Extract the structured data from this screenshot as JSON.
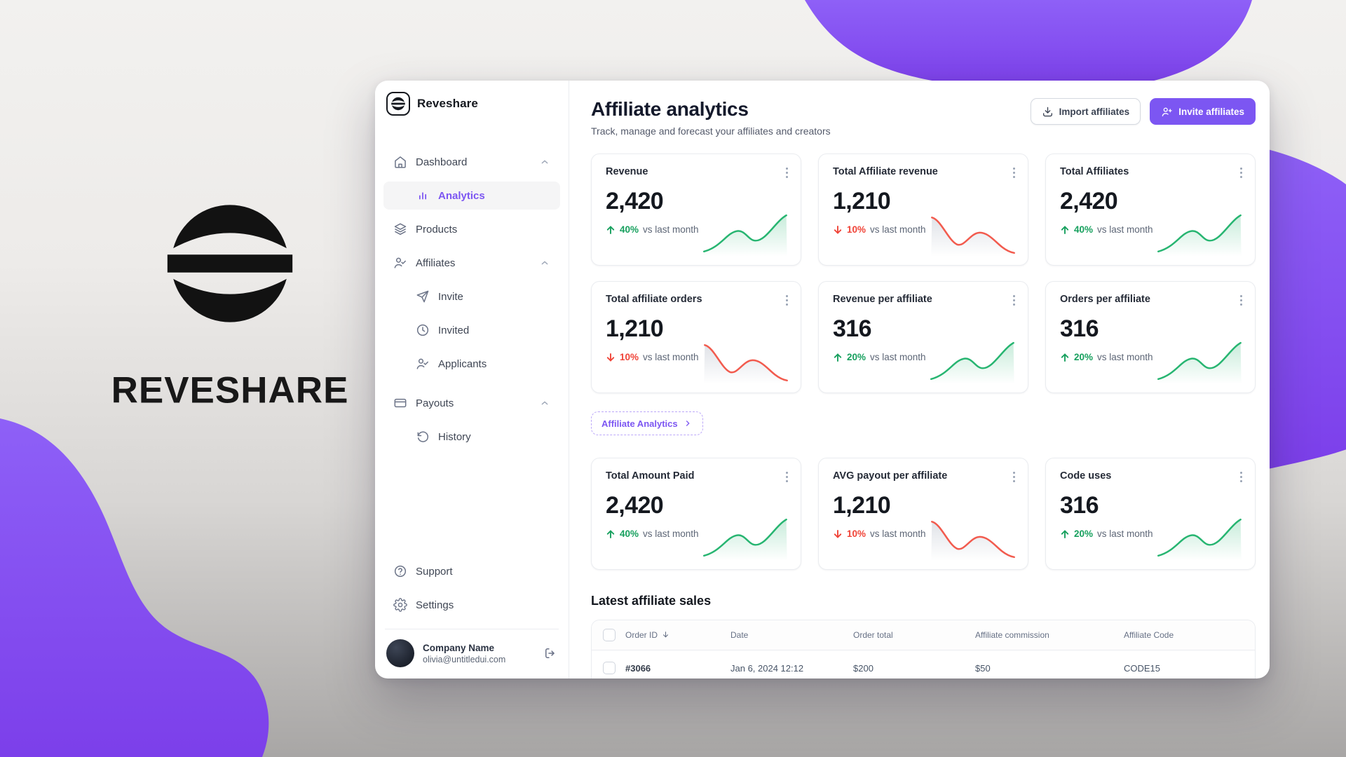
{
  "brand": {
    "wordmark": "REVESHARE",
    "logo_text": "Reveshare"
  },
  "colors": {
    "accent_purple": "#7C56F2",
    "blob_purple_top": "#8E60F7",
    "blob_purple_bottom": "#7C3FEA",
    "positive_green": "#17A05E",
    "negative_red": "#F04438",
    "window_bg": "#FFFFFF",
    "border": "#EAECF0"
  },
  "sidebar": {
    "nav": [
      {
        "label": "Dashboard",
        "icon": "home-icon",
        "expanded": true
      },
      {
        "label": "Analytics",
        "icon": "bar-chart-icon",
        "active": true
      },
      {
        "label": "Products",
        "icon": "layers-icon"
      },
      {
        "label": "Affiliates",
        "icon": "user-check-icon",
        "expanded": true
      },
      {
        "label": "Invite",
        "icon": "send-icon"
      },
      {
        "label": "Invited",
        "icon": "clock-icon"
      },
      {
        "label": "Applicants",
        "icon": "user-check-icon"
      },
      {
        "label": "Payouts",
        "icon": "credit-card-icon",
        "expanded": true
      },
      {
        "label": "History",
        "icon": "history-icon"
      }
    ],
    "footer_nav": [
      {
        "label": "Support",
        "icon": "help-circle-icon"
      },
      {
        "label": "Settings",
        "icon": "gear-icon"
      }
    ],
    "account": {
      "company": "Company Name",
      "email": "olivia@untitledui.com"
    }
  },
  "header": {
    "title": "Affiliate analytics",
    "subtitle": "Track, manage and forecast your affiliates and creators",
    "import_button": "Import affiliates",
    "invite_button": "Invite affiliates"
  },
  "cards": [
    {
      "title": "Revenue",
      "value": "2,420",
      "delta": "40%",
      "trend": "up",
      "note": "vs last month"
    },
    {
      "title": "Total Affiliate revenue",
      "value": "1,210",
      "delta": "10%",
      "trend": "down",
      "note": "vs last month"
    },
    {
      "title": "Total Affiliates",
      "value": "2,420",
      "delta": "40%",
      "trend": "up",
      "note": "vs last month"
    },
    {
      "title": "Total affiliate orders",
      "value": "1,210",
      "delta": "10%",
      "trend": "down",
      "note": "vs last month"
    },
    {
      "title": "Revenue per affiliate",
      "value": "316",
      "delta": "20%",
      "trend": "up",
      "note": "vs last month"
    },
    {
      "title": "Orders per affiliate",
      "value": "316",
      "delta": "20%",
      "trend": "up",
      "note": "vs last month"
    },
    {
      "title": "Total Amount Paid",
      "value": "2,420",
      "delta": "40%",
      "trend": "up",
      "note": "vs last month"
    },
    {
      "title": "AVG payout per affiliate",
      "value": "1,210",
      "delta": "10%",
      "trend": "down",
      "note": "vs last month"
    },
    {
      "title": "Code uses",
      "value": "316",
      "delta": "20%",
      "trend": "up",
      "note": "vs last month"
    }
  ],
  "link_button": {
    "label": "Affiliate Analytics"
  },
  "table": {
    "heading": "Latest affiliate sales",
    "columns": [
      {
        "label": "Order ID",
        "sorted": "desc"
      },
      {
        "label": "Date"
      },
      {
        "label": "Order total"
      },
      {
        "label": "Affiliate commission"
      },
      {
        "label": "Affiliate Code"
      }
    ],
    "rows": [
      {
        "order_id": "#3066",
        "date": "Jan 6, 2024 12:12",
        "order_total": "$200",
        "commission": "$50",
        "code": "CODE15"
      }
    ]
  }
}
